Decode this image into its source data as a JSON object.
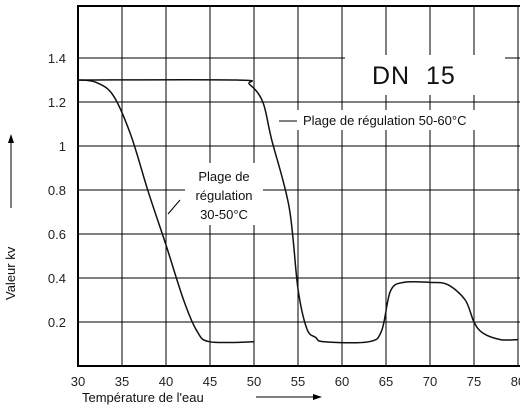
{
  "chart_data": {
    "type": "line",
    "title": "DN  15",
    "xlabel": "Température de l'eau",
    "ylabel": "Valeur kv",
    "xlim": [
      30,
      80
    ],
    "ylim": [
      0,
      1.6
    ],
    "grid": true,
    "x_ticks": [
      30,
      35,
      40,
      45,
      50,
      55,
      60,
      65,
      70,
      75,
      80
    ],
    "y_ticks": [
      0.2,
      0.4,
      0.6,
      0.8,
      1,
      1.2,
      1.4
    ],
    "series": [
      {
        "label": "Plage de régulation 30-50°C",
        "x": [
          30,
          32,
          34,
          36,
          38,
          40,
          42,
          43.5,
          45,
          50
        ],
        "y": [
          1.3,
          1.29,
          1.23,
          1.05,
          0.79,
          0.55,
          0.3,
          0.16,
          0.11,
          0.11
        ]
      },
      {
        "label": "Plage de régulation 50-60°C",
        "x": [
          30,
          48,
          49.5,
          51,
          52,
          54,
          55,
          56,
          57,
          58,
          63,
          64.5,
          65.5,
          67,
          70,
          72,
          74,
          75,
          76,
          78,
          80
        ],
        "y": [
          1.3,
          1.3,
          1.28,
          1.2,
          1.03,
          0.72,
          0.35,
          0.17,
          0.13,
          0.11,
          0.11,
          0.16,
          0.34,
          0.38,
          0.38,
          0.37,
          0.3,
          0.2,
          0.15,
          0.12,
          0.12
        ]
      }
    ],
    "annotations": [
      {
        "lines": [
          "Plage de",
          "régulation",
          "30-50°C"
        ]
      },
      {
        "lines": [
          "Plage de régulation 50-60°C"
        ]
      }
    ]
  }
}
